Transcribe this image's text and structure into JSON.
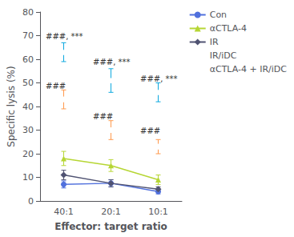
{
  "chart_data": {
    "type": "line",
    "categories": [
      "40:1",
      "20:1",
      "10:1"
    ],
    "xlabel": "Effector: target ratio",
    "ylabel": "Specific lysis (%)",
    "ylim": [
      0,
      80
    ],
    "yticks": [
      0,
      10,
      20,
      30,
      40,
      50,
      60,
      70,
      80
    ],
    "grid": false,
    "legend": "upper right",
    "series": [
      {
        "name": "Con",
        "values": [
          7,
          7.5,
          4
        ],
        "errors": [
          1.5,
          1.5,
          1
        ],
        "marker": "circle"
      },
      {
        "name": "αCTLA-4",
        "values": [
          18,
          15,
          9
        ],
        "errors": [
          3,
          2.5,
          2
        ],
        "marker": "triangle"
      },
      {
        "name": "IR",
        "values": [
          11,
          7.5,
          5
        ],
        "errors": [
          2,
          1.5,
          1
        ],
        "marker": "diamond"
      },
      {
        "name": "IR/iDC",
        "values": [
          43,
          30,
          23
        ],
        "errors": [
          4,
          4,
          3
        ],
        "marker": "circle_open"
      },
      {
        "name": "αCTLA-4 + IR/iDC",
        "values": [
          63,
          51,
          46
        ],
        "errors": [
          4,
          5,
          4
        ],
        "marker": "triangle_open"
      }
    ],
    "annotations": [
      {
        "text": "###, ***",
        "category": "40:1",
        "y": 68
      },
      {
        "text": "###",
        "category": "40:1",
        "y": 47
      },
      {
        "text": "###, ***",
        "category": "20:1",
        "y": 57
      },
      {
        "text": "###",
        "category": "20:1",
        "y": 34
      },
      {
        "text": "###, ***",
        "category": "10:1",
        "y": 50
      },
      {
        "text": "###",
        "category": "10:1",
        "y": 28
      }
    ]
  }
}
